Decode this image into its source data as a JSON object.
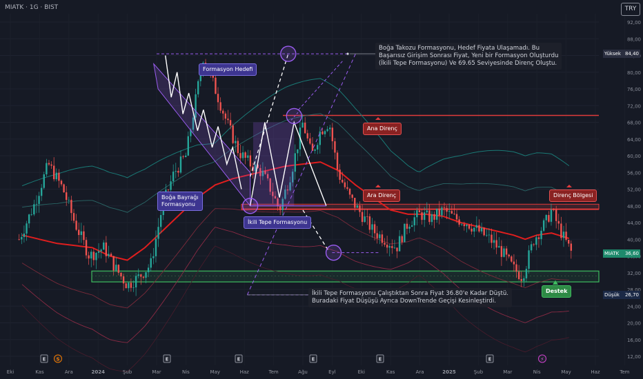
{
  "header": {
    "symbol": "MIATK · 1G · BIST",
    "currency": "TRY"
  },
  "colors": {
    "background": "#161a25",
    "pattern": "#9a5cf0",
    "resistance": "#e23b3b",
    "support": "#3fbd60",
    "ma": "#e01e1e"
  },
  "annotations": {
    "top_note": [
      "Boğa Takozu Formasyonu, Hedef Fiyata Ulaşamadı. Bu",
      "Başarısız Girişim Sonrası Fiyat, Yeni bir Formasyon Oluşturdu",
      "(İkili Tepe Formasyonu) Ve 69.65 Seviyesinde Direnç Oluştu."
    ],
    "bottom_note": [
      "İkili Tepe Formasyonu Çalıştıktan Sonra Fiyat 36.80'e Kadar Düştü.",
      "Buradaki Fiyat Düşüşü Ayrıca DownTrende Geçişi Kesinleştirdi."
    ],
    "target_label": "Formasyon Hedefi",
    "flag_label": [
      "Boğa Bayrağı",
      "Formasyonu"
    ],
    "double_top_label": "İkili Tepe Formasyonu",
    "main_res_label": "Ana Direnç",
    "mid_res_label": "Ara Direnç",
    "res_zone_label": "Direnç Bölgesi",
    "support_label": "Destek"
  },
  "price_labels": {
    "high": {
      "text": "Yüksek",
      "value": "84,40"
    },
    "last": {
      "text": "MIATK",
      "value": "36,60"
    },
    "low": {
      "text": "Düşük",
      "value": "26,70"
    }
  },
  "chart_data": {
    "type": "candlestick",
    "y_ticks": [
      "92,00",
      "88,00",
      "84,00",
      "80,00",
      "76,00",
      "72,00",
      "68,00",
      "64,00",
      "60,00",
      "56,00",
      "52,00",
      "48,00",
      "44,00",
      "40,00",
      "36,00",
      "32,00",
      "28,00",
      "24,00",
      "20,00",
      "16,00",
      "12,00"
    ],
    "y_range": [
      12,
      92
    ],
    "x_ticks": [
      "Eki",
      "Kas",
      "Ara",
      "2024",
      "Şub",
      "Mar",
      "Nis",
      "May",
      "Haz",
      "Tem",
      "Ağu",
      "Eyl",
      "Eki",
      "Kas",
      "Ara",
      "2025",
      "Şub",
      "Mar",
      "Nis",
      "May",
      "Haz",
      "Tem"
    ],
    "levels": {
      "main_resistance": 69.65,
      "intermediate_resistance": 47.2,
      "resistance_zone": [
        47.2,
        48.4
      ],
      "support_zone": [
        29.8,
        32.4
      ],
      "pattern_target": 84.4,
      "post_breakdown_low": 36.8
    },
    "last_price": 36.6,
    "high": 84.4,
    "low": 26.7,
    "event_markers": [
      "E",
      "S",
      "E",
      "E",
      "E",
      "E",
      "E",
      "⚡"
    ],
    "price_path": [
      [
        0.3,
        40
      ],
      [
        0.8,
        48
      ],
      [
        1.3,
        58
      ],
      [
        1.8,
        52
      ],
      [
        2.2,
        44
      ],
      [
        2.7,
        36
      ],
      [
        3.2,
        38
      ],
      [
        3.6,
        33
      ],
      [
        4.0,
        29
      ],
      [
        4.4,
        31
      ],
      [
        4.8,
        34
      ],
      [
        5.2,
        48
      ],
      [
        5.6,
        56
      ],
      [
        6.0,
        60
      ],
      [
        6.3,
        72
      ],
      [
        6.6,
        84
      ],
      [
        7.0,
        76
      ],
      [
        7.4,
        68
      ],
      [
        7.8,
        61
      ],
      [
        8.2,
        58
      ],
      [
        8.6,
        56
      ],
      [
        8.9,
        52
      ],
      [
        9.2,
        47
      ],
      [
        9.6,
        56
      ],
      [
        10.0,
        68
      ],
      [
        10.3,
        60
      ],
      [
        10.6,
        66
      ],
      [
        10.9,
        68
      ],
      [
        11.2,
        56
      ],
      [
        11.6,
        50
      ],
      [
        12.0,
        46
      ],
      [
        12.4,
        42
      ],
      [
        12.8,
        40
      ],
      [
        13.2,
        38
      ],
      [
        13.6,
        44
      ],
      [
        14.0,
        46
      ],
      [
        14.4,
        45
      ],
      [
        14.8,
        47
      ],
      [
        15.2,
        45
      ],
      [
        15.6,
        44
      ],
      [
        16.0,
        42
      ],
      [
        16.4,
        40
      ],
      [
        16.8,
        37
      ],
      [
        17.2,
        33
      ],
      [
        17.5,
        31
      ],
      [
        17.9,
        40
      ],
      [
        18.3,
        44
      ],
      [
        18.5,
        47
      ],
      [
        18.8,
        42
      ],
      [
        19.2,
        36.6
      ]
    ],
    "ma_path": [
      [
        0.4,
        41
      ],
      [
        1.0,
        40
      ],
      [
        1.6,
        39
      ],
      [
        2.2,
        38.5
      ],
      [
        2.8,
        38
      ],
      [
        3.4,
        36
      ],
      [
        4.0,
        35
      ],
      [
        4.6,
        38
      ],
      [
        5.2,
        42
      ],
      [
        5.8,
        46
      ],
      [
        6.4,
        50
      ],
      [
        7.0,
        53
      ],
      [
        7.6,
        54.5
      ],
      [
        8.2,
        55.5
      ],
      [
        8.8,
        56.5
      ],
      [
        9.4,
        57.5
      ],
      [
        10.0,
        58
      ],
      [
        10.6,
        58.5
      ],
      [
        11.2,
        56.5
      ],
      [
        11.8,
        53
      ],
      [
        12.4,
        50
      ],
      [
        13.0,
        47
      ],
      [
        13.6,
        46
      ],
      [
        14.2,
        46
      ],
      [
        14.8,
        45.5
      ],
      [
        15.4,
        44
      ],
      [
        16.0,
        43
      ],
      [
        16.6,
        42
      ],
      [
        17.2,
        41
      ],
      [
        17.6,
        40
      ],
      [
        18.0,
        41
      ],
      [
        18.5,
        41.5
      ],
      [
        19.2,
        40
      ]
    ]
  }
}
